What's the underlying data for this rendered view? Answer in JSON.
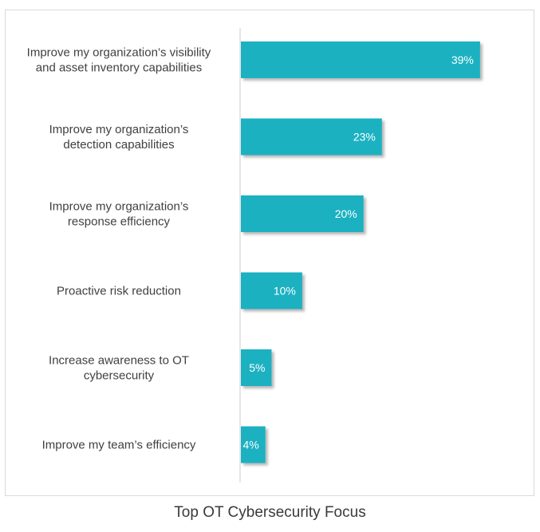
{
  "chart_data": {
    "type": "bar",
    "orientation": "horizontal",
    "categories": [
      [
        "Improve my organization’s visibility",
        "and asset inventory capabilities"
      ],
      [
        "Improve my organization’s",
        "detection capabilities"
      ],
      [
        "Improve my organization’s",
        "response efficiency"
      ],
      [
        "Proactive risk reduction"
      ],
      [
        "Increase awareness to OT",
        "cybersecurity"
      ],
      [
        "Improve my team’s efficiency"
      ]
    ],
    "values": [
      39,
      23,
      20,
      10,
      5,
      4
    ],
    "value_labels": [
      "39%",
      "23%",
      "20%",
      "10%",
      "5%",
      "4%"
    ],
    "unit": "%",
    "xlim": [
      0,
      45
    ],
    "grid": false,
    "legend": "none",
    "bar_color": "#1bb1c1",
    "axis_color": "#cccccc"
  },
  "caption": "Top OT Cybersecurity Focus"
}
